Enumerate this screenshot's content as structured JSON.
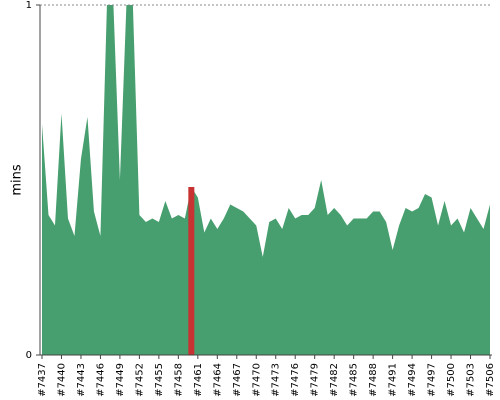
{
  "chart_data": {
    "type": "area",
    "y_label": "mins",
    "categories": [
      "#7437",
      null,
      null,
      "#7440",
      null,
      null,
      "#7443",
      null,
      null,
      "#7446",
      null,
      null,
      "#7449",
      null,
      null,
      "#7452",
      null,
      null,
      "#7455",
      null,
      null,
      "#7458",
      null,
      null,
      "#7461",
      null,
      null,
      "#7464",
      null,
      null,
      "#7467",
      null,
      null,
      "#7470",
      null,
      null,
      "#7473",
      null,
      null,
      "#7476",
      null,
      null,
      "#7479",
      null,
      null,
      "#7482",
      null,
      null,
      "#7485",
      null,
      null,
      "#7488",
      null,
      null,
      "#7491",
      null,
      null,
      "#7494",
      null,
      null,
      "#7497",
      null,
      null,
      "#7500",
      null,
      null,
      "#7503",
      null,
      null,
      "#7506"
    ],
    "values": [
      0.66,
      0.4,
      0.37,
      0.69,
      0.39,
      0.34,
      0.56,
      0.68,
      0.41,
      0.34,
      1,
      1,
      0.5,
      1,
      1,
      0.4,
      0.38,
      0.39,
      0.38,
      0.44,
      0.39,
      0.4,
      0.39,
      0.48,
      0.45,
      0.35,
      0.39,
      0.36,
      0.39,
      0.43,
      0.42,
      0.41,
      0.39,
      0.37,
      0.28,
      0.38,
      0.39,
      0.36,
      0.42,
      0.39,
      0.4,
      0.4,
      0.42,
      0.5,
      0.4,
      0.42,
      0.4,
      0.37,
      0.39,
      0.39,
      0.39,
      0.41,
      0.41,
      0.38,
      0.3,
      0.37,
      0.42,
      0.41,
      0.42,
      0.46,
      0.45,
      0.37,
      0.44,
      0.37,
      0.39,
      0.35,
      0.42,
      0.39,
      0.36,
      0.43
    ],
    "color": "#479e6e",
    "highlight_index": 23,
    "highlight_color": "#c83232",
    "ylim": [
      0,
      1
    ],
    "yticks": [
      0,
      1
    ],
    "grid": true
  }
}
